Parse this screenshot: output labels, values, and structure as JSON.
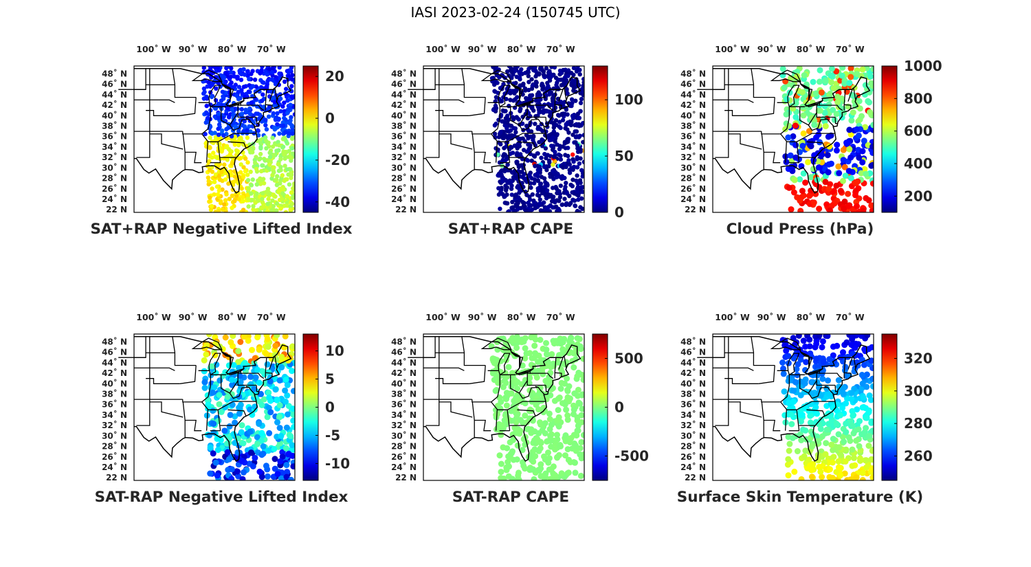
{
  "figure": {
    "title": "IASI 2023-02-24 (150745 UTC)"
  },
  "colormap": "jet",
  "chart_data": [
    {
      "type": "map-scatter",
      "title": "SAT+RAP Negative Lifted Index",
      "lon_ticks": [
        "100˚ W",
        "90˚ W",
        "80˚ W",
        "70˚ W"
      ],
      "lat_ticks": [
        "48˚ N",
        "46˚ N",
        "44˚ N",
        "42˚ N",
        "40˚ N",
        "38˚ N",
        "36˚ N",
        "34˚ N",
        "32˚ N",
        "30˚ N",
        "28˚ N",
        "26˚ N",
        "24˚ N",
        "22 N"
      ],
      "colorbar": {
        "min": -45,
        "max": 25,
        "ticks": [
          20,
          0,
          -20,
          -40
        ],
        "tick_labels": [
          "20",
          "0",
          "-20",
          "-40"
        ]
      },
      "field": "nli_total"
    },
    {
      "type": "map-scatter",
      "title": "SAT+RAP CAPE",
      "lon_ticks": [
        "100˚ W",
        "90˚ W",
        "80˚ W",
        "70˚ W"
      ],
      "lat_ticks": [
        "48˚ N",
        "46˚ N",
        "44˚ N",
        "42˚ N",
        "40˚ N",
        "38˚ N",
        "36˚ N",
        "34˚ N",
        "32˚ N",
        "30˚ N",
        "28˚ N",
        "26˚ N",
        "24˚ N",
        "22 N"
      ],
      "colorbar": {
        "min": 0,
        "max": 130,
        "ticks": [
          100,
          50,
          0
        ],
        "tick_labels": [
          "100",
          "50",
          "0"
        ]
      },
      "field": "cape_total"
    },
    {
      "type": "map-scatter",
      "title": "Cloud Press (hPa)",
      "lon_ticks": [
        "100˚ W",
        "90˚ W",
        "80˚ W",
        "70˚ W"
      ],
      "lat_ticks": [
        "48˚ N",
        "46˚ N",
        "44˚ N",
        "42˚ N",
        "40˚ N",
        "38˚ N",
        "36˚ N",
        "34˚ N",
        "32˚ N",
        "30˚ N",
        "28˚ N",
        "26˚ N",
        "24˚ N",
        "22 N"
      ],
      "colorbar": {
        "min": 100,
        "max": 1000,
        "ticks": [
          1000,
          800,
          600,
          400,
          200
        ],
        "tick_labels": [
          "1000",
          "800",
          "600",
          "400",
          "200"
        ]
      },
      "field": "cloud_press"
    },
    {
      "type": "map-scatter",
      "title": "SAT-RAP Negative Lifted Index",
      "lon_ticks": [
        "100˚ W",
        "90˚ W",
        "80˚ W",
        "70˚ W"
      ],
      "lat_ticks": [
        "48˚ N",
        "46˚ N",
        "44˚ N",
        "42˚ N",
        "40˚ N",
        "38˚ N",
        "36˚ N",
        "34˚ N",
        "32˚ N",
        "30˚ N",
        "28˚ N",
        "26˚ N",
        "24˚ N",
        "22 N"
      ],
      "colorbar": {
        "min": -13,
        "max": 13,
        "ticks": [
          10,
          5,
          0,
          -5,
          -10
        ],
        "tick_labels": [
          "10",
          "5",
          "0",
          "-5",
          "-10"
        ]
      },
      "field": "nli_diff"
    },
    {
      "type": "map-scatter",
      "title": "SAT-RAP CAPE",
      "lon_ticks": [
        "100˚ W",
        "90˚ W",
        "80˚ W",
        "70˚ W"
      ],
      "lat_ticks": [
        "48˚ N",
        "46˚ N",
        "44˚ N",
        "42˚ N",
        "40˚ N",
        "38˚ N",
        "36˚ N",
        "34˚ N",
        "32˚ N",
        "30˚ N",
        "28˚ N",
        "26˚ N",
        "24˚ N",
        "22 N"
      ],
      "colorbar": {
        "min": -750,
        "max": 750,
        "ticks": [
          500,
          0,
          -500
        ],
        "tick_labels": [
          "500",
          "0",
          "-500"
        ]
      },
      "field": "cape_diff"
    },
    {
      "type": "map-scatter",
      "title": "Surface Skin Temperature (K)",
      "lon_ticks": [
        "100˚ W",
        "90˚ W",
        "80˚ W",
        "70˚ W"
      ],
      "lat_ticks": [
        "48˚ N",
        "46˚ N",
        "44˚ N",
        "42˚ N",
        "40˚ N",
        "38˚ N",
        "36˚ N",
        "34˚ N",
        "32˚ N",
        "30˚ N",
        "28˚ N",
        "26˚ N",
        "24˚ N",
        "22 N"
      ],
      "colorbar": {
        "min": 245,
        "max": 335,
        "ticks": [
          320,
          300,
          280,
          260
        ],
        "tick_labels": [
          "320",
          "300",
          "280",
          "260"
        ]
      },
      "field": "skin_temp"
    }
  ]
}
